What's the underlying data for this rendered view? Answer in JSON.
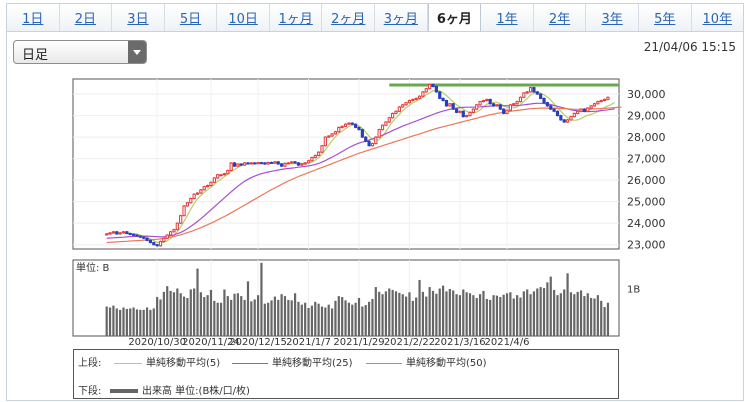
{
  "tabs": [
    {
      "label": "1日",
      "active": false
    },
    {
      "label": "2日",
      "active": false
    },
    {
      "label": "3日",
      "active": false
    },
    {
      "label": "5日",
      "active": false
    },
    {
      "label": "10日",
      "active": false
    },
    {
      "label": "1ヶ月",
      "active": false
    },
    {
      "label": "2ヶ月",
      "active": false
    },
    {
      "label": "3ヶ月",
      "active": false
    },
    {
      "label": "6ヶ月",
      "active": true
    },
    {
      "label": "1年",
      "active": false
    },
    {
      "label": "2年",
      "active": false
    },
    {
      "label": "3年",
      "active": false
    },
    {
      "label": "5年",
      "active": false
    },
    {
      "label": "10年",
      "active": false
    }
  ],
  "period_select": {
    "value": "日足"
  },
  "timestamp": "21/04/06 15:15",
  "legend": {
    "upper_label": "上段:",
    "lower_label": "下段:",
    "items": [
      {
        "label": "単純移動平均(5)",
        "color": "#b5cf6b"
      },
      {
        "label": "単純移動平均(25)",
        "color": "#a64fd1"
      },
      {
        "label": "単純移動平均(50)",
        "color": "#e9785a"
      }
    ],
    "volume_label": "出来高 単位:(B株/口/枚)",
    "volume_color": "#666666"
  },
  "chart_data": [
    {
      "type": "candlestick",
      "y_ticks": [
        "30,000",
        "29,000",
        "28,000",
        "27,000",
        "26,000",
        "25,000",
        "24,000",
        "23,000"
      ],
      "y_tick_values": [
        30000,
        29000,
        28000,
        27000,
        26000,
        25000,
        24000,
        23000
      ],
      "ylim": [
        22800,
        30700
      ],
      "x_tick_labels": [
        "2020/10/30",
        "2020/11/24",
        "2020/12/15",
        "2021/1/7",
        "2021/1/29",
        "2021/2/22",
        "2021/3/16",
        "2021/4/6"
      ],
      "x_tick_index": [
        15,
        31,
        45,
        60,
        75,
        90,
        105,
        119
      ],
      "reference_line": {
        "value": 30420,
        "color": "#6aa84f"
      },
      "up_color": "#e23a3a",
      "down_color": "#2a3fb8",
      "series": [
        {
          "name": "ローソク足",
          "close": [
            23500,
            23550,
            23600,
            23500,
            23550,
            23600,
            23520,
            23480,
            23450,
            23400,
            23350,
            23300,
            23200,
            23100,
            23000,
            22950,
            23150,
            23300,
            23450,
            23600,
            23700,
            24000,
            24350,
            24800,
            24950,
            25150,
            25350,
            25400,
            25550,
            25700,
            25750,
            25900,
            26100,
            26250,
            26250,
            26300,
            26450,
            26800,
            26650,
            26750,
            26700,
            26800,
            26780,
            26800,
            26790,
            26810,
            26800,
            26750,
            26820,
            26790,
            26850,
            26750,
            26650,
            26780,
            26800,
            26850,
            26800,
            26700,
            26750,
            26800,
            26900,
            27050,
            27150,
            27300,
            27600,
            28000,
            28050,
            28150,
            28250,
            28450,
            28500,
            28600,
            28650,
            28600,
            28450,
            28350,
            28000,
            27800,
            27600,
            27700,
            28000,
            28350,
            28550,
            28700,
            28900,
            29100,
            29200,
            29400,
            29500,
            29600,
            29700,
            29750,
            29800,
            29900,
            30100,
            30250,
            30450,
            30350,
            30100,
            29800,
            29700,
            29450,
            29550,
            29300,
            29150,
            29200,
            28950,
            29000,
            29150,
            29300,
            29500,
            29650,
            29700,
            29750,
            29550,
            29450,
            29500,
            29300,
            29100,
            29250,
            29500,
            29550,
            29650,
            29850,
            30050,
            30100,
            30300,
            30100,
            30000,
            29800,
            29600,
            29450,
            29300,
            29200,
            29000,
            28800,
            28700,
            28800,
            28950,
            29100,
            29200,
            29300,
            29200,
            29350,
            29450,
            29550,
            29650,
            29700,
            29750,
            29850
          ]
        },
        {
          "name": "単純移動平均(5)",
          "values": [
            23500,
            23520,
            23540,
            23540,
            23540,
            23560,
            23550,
            23530,
            23520,
            23490,
            23440,
            23400,
            23340,
            23270,
            23190,
            23110,
            23080,
            23110,
            23180,
            23290,
            23440,
            23610,
            23820,
            24090,
            24360,
            24650,
            24920,
            25130,
            25280,
            25430,
            25550,
            25670,
            25800,
            25940,
            26050,
            26160,
            26270,
            26410,
            26490,
            26590,
            26670,
            26740,
            26750,
            26770,
            26780,
            26800,
            26800,
            26790,
            26790,
            26790,
            26800,
            26790,
            26770,
            26760,
            26770,
            26770,
            26770,
            26780,
            26780,
            26780,
            26810,
            26840,
            26920,
            27040,
            27200,
            27420,
            27620,
            27830,
            28010,
            28180,
            28280,
            28390,
            28490,
            28560,
            28560,
            28510,
            28400,
            28240,
            28040,
            27890,
            27820,
            27890,
            28040,
            28260,
            28500,
            28720,
            28890,
            29060,
            29220,
            29360,
            29480,
            29590,
            29670,
            29750,
            29850,
            29960,
            30060,
            30150,
            30180,
            30140,
            30060,
            29930,
            29790,
            29640,
            29500,
            29400,
            29300,
            29200,
            29140,
            29130,
            29160,
            29260,
            29400,
            29530,
            29580,
            29620,
            29620,
            29550,
            29450,
            29380,
            29360,
            29360,
            29400,
            29510,
            29660,
            29800,
            29950,
            30040,
            30100,
            30040,
            29960,
            29860,
            29720,
            29540,
            29360,
            29200,
            29040,
            28900,
            28820,
            28780,
            28800,
            28860,
            28950,
            29020,
            29050,
            29120,
            29190,
            29280,
            29380,
            29450,
            29520,
            29610
          ]
        },
        {
          "name": "単純移動平均(25)",
          "values": [
            23300,
            23310,
            23320,
            23330,
            23340,
            23350,
            23360,
            23370,
            23380,
            23390,
            23400,
            23400,
            23400,
            23390,
            23380,
            23370,
            23360,
            23370,
            23390,
            23420,
            23460,
            23510,
            23570,
            23650,
            23740,
            23850,
            23960,
            24080,
            24210,
            24340,
            24480,
            24620,
            24760,
            24900,
            25040,
            25180,
            25320,
            25460,
            25590,
            25720,
            25840,
            25950,
            26040,
            26120,
            26190,
            26250,
            26300,
            26340,
            26380,
            26410,
            26440,
            26470,
            26500,
            26520,
            26540,
            26560,
            26580,
            26600,
            26620,
            26640,
            26660,
            26690,
            26730,
            26780,
            26840,
            26910,
            26990,
            27070,
            27150,
            27240,
            27330,
            27420,
            27510,
            27590,
            27660,
            27720,
            27770,
            27820,
            27870,
            27920,
            27970,
            28030,
            28090,
            28160,
            28230,
            28300,
            28370,
            28440,
            28510,
            28570,
            28630,
            28690,
            28750,
            28810,
            28870,
            28930,
            28990,
            29050,
            29110,
            29160,
            29210,
            29250,
            29290,
            29320,
            29350,
            29370,
            29380,
            29390,
            29390,
            29390,
            29400,
            29410,
            29420,
            29430,
            29440,
            29450,
            29460,
            29460,
            29460,
            29460,
            29460,
            29460,
            29470,
            29480,
            29500,
            29520,
            29540,
            29560,
            29570,
            29570,
            29560,
            29540,
            29510,
            29470,
            29430,
            29390,
            29350,
            29310,
            29270,
            29240,
            29220,
            29200,
            29190,
            29190,
            29190,
            29200,
            29210,
            29230,
            29250,
            29270,
            29290,
            29310
          ]
        },
        {
          "name": "単純移動平均(50)",
          "values": [
            23100,
            23110,
            23120,
            23130,
            23140,
            23150,
            23160,
            23170,
            23180,
            23190,
            23200,
            23210,
            23220,
            23230,
            23240,
            23250,
            23270,
            23290,
            23320,
            23350,
            23380,
            23420,
            23460,
            23510,
            23560,
            23610,
            23670,
            23730,
            23790,
            23860,
            23930,
            24000,
            24070,
            24150,
            24230,
            24310,
            24390,
            24480,
            24570,
            24660,
            24750,
            24840,
            24930,
            25020,
            25110,
            25200,
            25290,
            25380,
            25470,
            25560,
            25640,
            25720,
            25800,
            25880,
            25960,
            26030,
            26100,
            26170,
            26230,
            26290,
            26350,
            26410,
            26470,
            26530,
            26590,
            26650,
            26710,
            26770,
            26830,
            26890,
            26950,
            27010,
            27070,
            27130,
            27190,
            27250,
            27300,
            27350,
            27400,
            27450,
            27500,
            27550,
            27600,
            27650,
            27700,
            27750,
            27800,
            27850,
            27900,
            27950,
            28000,
            28050,
            28100,
            28150,
            28200,
            28250,
            28300,
            28350,
            28400,
            28440,
            28480,
            28520,
            28560,
            28600,
            28640,
            28680,
            28720,
            28760,
            28800,
            28840,
            28880,
            28920,
            28960,
            29000,
            29040,
            29070,
            29100,
            29130,
            29160,
            29180,
            29200,
            29220,
            29240,
            29260,
            29280,
            29300,
            29320,
            29330,
            29340,
            29350,
            29350,
            29350,
            29350,
            29350,
            29340,
            29330,
            29320,
            29310,
            29300,
            29290,
            29290,
            29290,
            29290,
            29290,
            29300,
            29310,
            29320,
            29330,
            29340,
            29350,
            29360,
            29370,
            29380,
            29390
          ]
        }
      ]
    },
    {
      "type": "bar",
      "ylabel": "単位: B",
      "y_ticks": [
        "1B"
      ],
      "y_tick_values": [
        1.0
      ],
      "ylim": [
        0,
        1.6
      ],
      "series": [
        {
          "name": "出来高",
          "values": [
            0.62,
            0.6,
            0.64,
            0.58,
            0.55,
            0.6,
            0.57,
            0.58,
            0.6,
            0.56,
            0.55,
            0.55,
            0.6,
            0.55,
            0.58,
            0.82,
            0.77,
            0.93,
            1.05,
            0.95,
            0.92,
            1.0,
            0.9,
            0.83,
            0.8,
            0.98,
            1.0,
            1.42,
            0.92,
            0.82,
            0.86,
            0.97,
            0.74,
            0.7,
            0.7,
            0.98,
            0.84,
            0.76,
            0.89,
            0.9,
            0.84,
            0.76,
            1.15,
            0.73,
            0.77,
            0.86,
            1.54,
            0.68,
            0.7,
            0.75,
            0.83,
            0.76,
            0.88,
            0.84,
            0.76,
            0.75,
            0.9,
            0.72,
            0.66,
            0.7,
            0.59,
            0.64,
            0.72,
            0.68,
            0.62,
            0.6,
            0.66,
            0.58,
            0.74,
            0.84,
            0.82,
            0.75,
            0.7,
            0.66,
            0.7,
            0.8,
            0.62,
            0.65,
            0.72,
            0.78,
            1.03,
            0.93,
            0.88,
            0.94,
            1.0,
            0.97,
            0.94,
            0.91,
            0.88,
            0.83,
            0.92,
            0.74,
            0.81,
            1.18,
            0.93,
            0.83,
            1.03,
            0.95,
            0.89,
            1.0,
            1.06,
            0.94,
            0.99,
            0.96,
            0.88,
            0.86,
            0.98,
            0.92,
            0.9,
            0.86,
            0.8,
            0.88,
            0.95,
            0.78,
            0.76,
            0.86,
            0.85,
            0.82,
            0.87,
            0.9,
            0.92,
            0.79,
            0.86,
            0.81,
            0.94,
            0.98,
            0.88,
            0.94,
            1.0,
            1.03,
            1.01,
            1.13,
            1.25,
            0.97,
            0.86,
            0.9,
            0.98,
            1.32,
            0.92,
            0.88,
            0.93,
            0.96,
            0.84,
            0.9,
            0.8,
            0.79,
            0.86,
            0.74,
            0.61,
            0.7
          ]
        }
      ]
    }
  ]
}
